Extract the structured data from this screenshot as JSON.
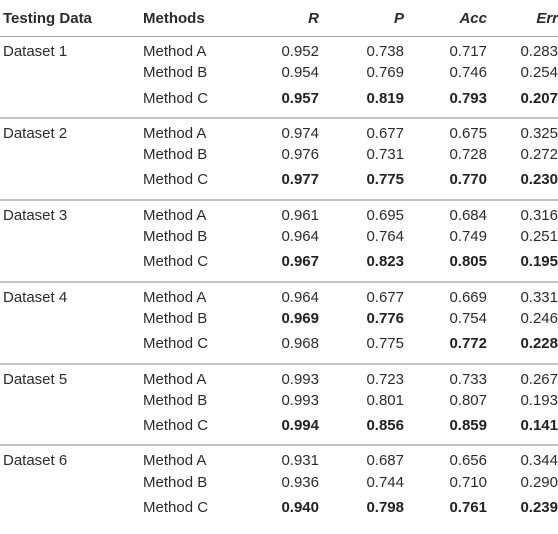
{
  "headers": {
    "testing_data": "Testing Data",
    "methods": "Methods",
    "r": "R",
    "p": "P",
    "acc": "Acc",
    "err": "Err"
  },
  "groups": [
    {
      "dataset": "Dataset 1",
      "rows": [
        {
          "method": "Method A",
          "r": "0.952",
          "p": "0.738",
          "acc": "0.717",
          "err": "0.283",
          "bold": []
        },
        {
          "method": "Method B",
          "r": "0.954",
          "p": "0.769",
          "acc": "0.746",
          "err": "0.254",
          "bold": []
        },
        {
          "method": "Method C",
          "r": "0.957",
          "p": "0.819",
          "acc": "0.793",
          "err": "0.207",
          "bold": [
            "r",
            "p",
            "acc",
            "err"
          ]
        }
      ]
    },
    {
      "dataset": "Dataset 2",
      "rows": [
        {
          "method": "Method A",
          "r": "0.974",
          "p": "0.677",
          "acc": "0.675",
          "err": "0.325",
          "bold": []
        },
        {
          "method": "Method B",
          "r": "0.976",
          "p": "0.731",
          "acc": "0.728",
          "err": "0.272",
          "bold": []
        },
        {
          "method": "Method C",
          "r": "0.977",
          "p": "0.775",
          "acc": "0.770",
          "err": "0.230",
          "bold": [
            "r",
            "p",
            "acc",
            "err"
          ]
        }
      ]
    },
    {
      "dataset": "Dataset 3",
      "rows": [
        {
          "method": "Method A",
          "r": "0.961",
          "p": "0.695",
          "acc": "0.684",
          "err": "0.316",
          "bold": []
        },
        {
          "method": "Method B",
          "r": "0.964",
          "p": "0.764",
          "acc": "0.749",
          "err": "0.251",
          "bold": []
        },
        {
          "method": "Method C",
          "r": "0.967",
          "p": "0.823",
          "acc": "0.805",
          "err": "0.195",
          "bold": [
            "r",
            "p",
            "acc",
            "err"
          ]
        }
      ]
    },
    {
      "dataset": "Dataset 4",
      "rows": [
        {
          "method": "Method A",
          "r": "0.964",
          "p": "0.677",
          "acc": "0.669",
          "err": "0.331",
          "bold": []
        },
        {
          "method": "Method B",
          "r": "0.969",
          "p": "0.776",
          "acc": "0.754",
          "err": "0.246",
          "bold": [
            "r",
            "p"
          ]
        },
        {
          "method": "Method C",
          "r": "0.968",
          "p": "0.775",
          "acc": "0.772",
          "err": "0.228",
          "bold": [
            "acc",
            "err"
          ]
        }
      ]
    },
    {
      "dataset": "Dataset 5",
      "rows": [
        {
          "method": "Method A",
          "r": "0.993",
          "p": "0.723",
          "acc": "0.733",
          "err": "0.267",
          "bold": []
        },
        {
          "method": "Method B",
          "r": "0.993",
          "p": "0.801",
          "acc": "0.807",
          "err": "0.193",
          "bold": []
        },
        {
          "method": "Method C",
          "r": "0.994",
          "p": "0.856",
          "acc": "0.859",
          "err": "0.141",
          "bold": [
            "r",
            "p",
            "acc",
            "err"
          ]
        }
      ]
    },
    {
      "dataset": "Dataset 6",
      "rows": [
        {
          "method": "Method A",
          "r": "0.931",
          "p": "0.687",
          "acc": "0.656",
          "err": "0.344",
          "bold": []
        },
        {
          "method": "Method B",
          "r": "0.936",
          "p": "0.744",
          "acc": "0.710",
          "err": "0.290",
          "bold": []
        },
        {
          "method": "Method C",
          "r": "0.940",
          "p": "0.798",
          "acc": "0.761",
          "err": "0.239",
          "bold": [
            "r",
            "p",
            "acc",
            "err"
          ]
        }
      ]
    }
  ]
}
